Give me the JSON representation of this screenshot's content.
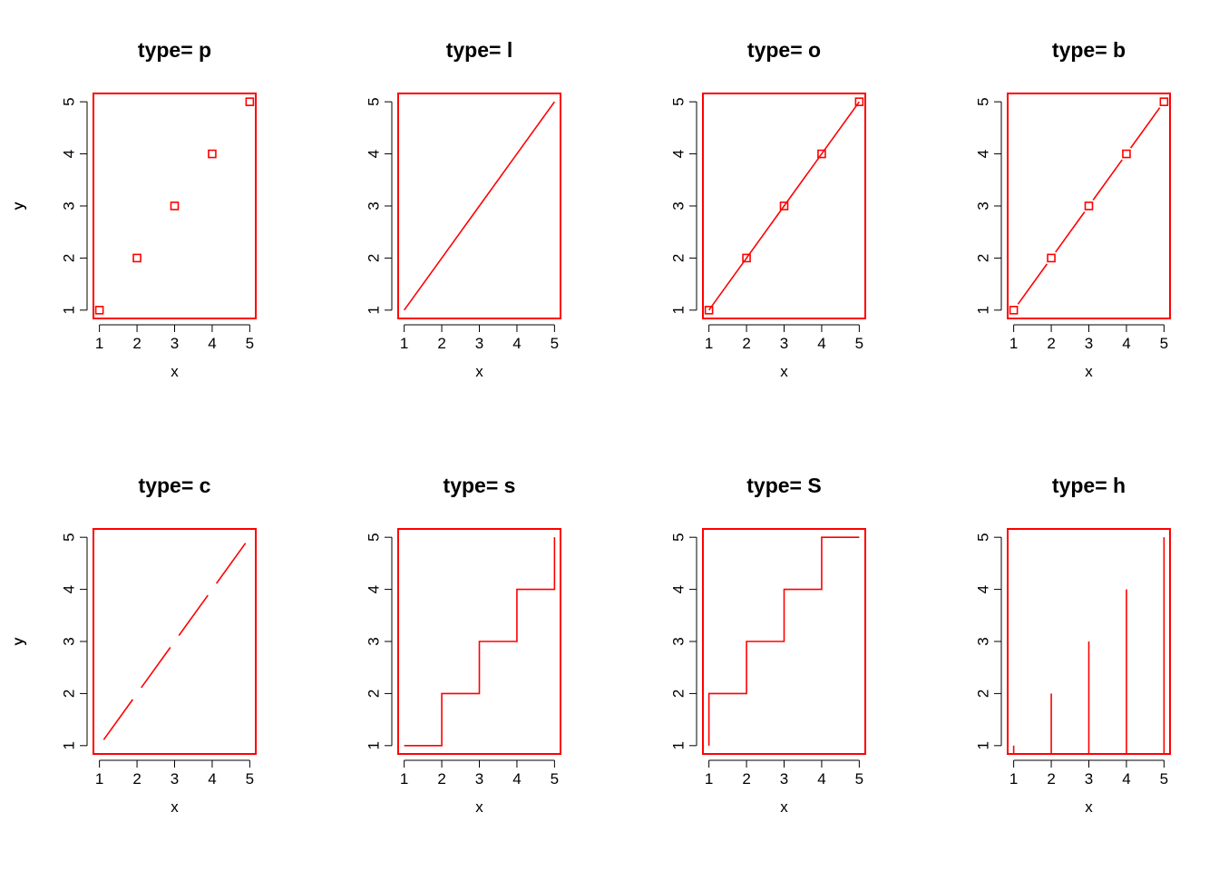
{
  "accent_color": "#ff0000",
  "chart_data": [
    {
      "type": "scatter",
      "title": "type= p",
      "xlabel": "x",
      "ylabel": "y",
      "plot_type": "p",
      "x": [
        1,
        2,
        3,
        4,
        5
      ],
      "y": [
        1,
        2,
        3,
        4,
        5
      ],
      "xticks": [
        1,
        2,
        3,
        4,
        5
      ],
      "yticks": [
        1,
        2,
        3,
        4,
        5
      ],
      "xlim": [
        1,
        5
      ],
      "ylim": [
        1,
        5
      ],
      "marker": "open-square",
      "color": "#ff0000"
    },
    {
      "type": "line",
      "title": "type= l",
      "xlabel": "x",
      "ylabel": "y",
      "plot_type": "l",
      "x": [
        1,
        2,
        3,
        4,
        5
      ],
      "y": [
        1,
        2,
        3,
        4,
        5
      ],
      "xticks": [
        1,
        2,
        3,
        4,
        5
      ],
      "yticks": [
        1,
        2,
        3,
        4,
        5
      ],
      "xlim": [
        1,
        5
      ],
      "ylim": [
        1,
        5
      ],
      "color": "#ff0000"
    },
    {
      "type": "line",
      "title": "type= o",
      "xlabel": "x",
      "ylabel": "y",
      "plot_type": "o",
      "x": [
        1,
        2,
        3,
        4,
        5
      ],
      "y": [
        1,
        2,
        3,
        4,
        5
      ],
      "xticks": [
        1,
        2,
        3,
        4,
        5
      ],
      "yticks": [
        1,
        2,
        3,
        4,
        5
      ],
      "xlim": [
        1,
        5
      ],
      "ylim": [
        1,
        5
      ],
      "marker": "open-square",
      "color": "#ff0000"
    },
    {
      "type": "line",
      "title": "type= b",
      "xlabel": "x",
      "ylabel": "y",
      "plot_type": "b",
      "x": [
        1,
        2,
        3,
        4,
        5
      ],
      "y": [
        1,
        2,
        3,
        4,
        5
      ],
      "xticks": [
        1,
        2,
        3,
        4,
        5
      ],
      "yticks": [
        1,
        2,
        3,
        4,
        5
      ],
      "xlim": [
        1,
        5
      ],
      "ylim": [
        1,
        5
      ],
      "marker": "open-square",
      "color": "#ff0000"
    },
    {
      "type": "line",
      "title": "type= c",
      "xlabel": "x",
      "ylabel": "y",
      "plot_type": "c",
      "x": [
        1,
        2,
        3,
        4,
        5
      ],
      "y": [
        1,
        2,
        3,
        4,
        5
      ],
      "xticks": [
        1,
        2,
        3,
        4,
        5
      ],
      "yticks": [
        1,
        2,
        3,
        4,
        5
      ],
      "xlim": [
        1,
        5
      ],
      "ylim": [
        1,
        5
      ],
      "color": "#ff0000"
    },
    {
      "type": "line",
      "title": "type= s",
      "xlabel": "x",
      "ylabel": "y",
      "plot_type": "s",
      "x": [
        1,
        2,
        3,
        4,
        5
      ],
      "y": [
        1,
        2,
        3,
        4,
        5
      ],
      "xticks": [
        1,
        2,
        3,
        4,
        5
      ],
      "yticks": [
        1,
        2,
        3,
        4,
        5
      ],
      "xlim": [
        1,
        5
      ],
      "ylim": [
        1,
        5
      ],
      "color": "#ff0000"
    },
    {
      "type": "line",
      "title": "type= S",
      "xlabel": "x",
      "ylabel": "y",
      "plot_type": "S",
      "x": [
        1,
        2,
        3,
        4,
        5
      ],
      "y": [
        1,
        2,
        3,
        4,
        5
      ],
      "xticks": [
        1,
        2,
        3,
        4,
        5
      ],
      "yticks": [
        1,
        2,
        3,
        4,
        5
      ],
      "xlim": [
        1,
        5
      ],
      "ylim": [
        1,
        5
      ],
      "color": "#ff0000"
    },
    {
      "type": "bar",
      "title": "type= h",
      "xlabel": "x",
      "ylabel": "y",
      "plot_type": "h",
      "x": [
        1,
        2,
        3,
        4,
        5
      ],
      "y": [
        1,
        2,
        3,
        4,
        5
      ],
      "xticks": [
        1,
        2,
        3,
        4,
        5
      ],
      "yticks": [
        1,
        2,
        3,
        4,
        5
      ],
      "xlim": [
        1,
        5
      ],
      "ylim": [
        1,
        5
      ],
      "color": "#ff0000"
    }
  ]
}
